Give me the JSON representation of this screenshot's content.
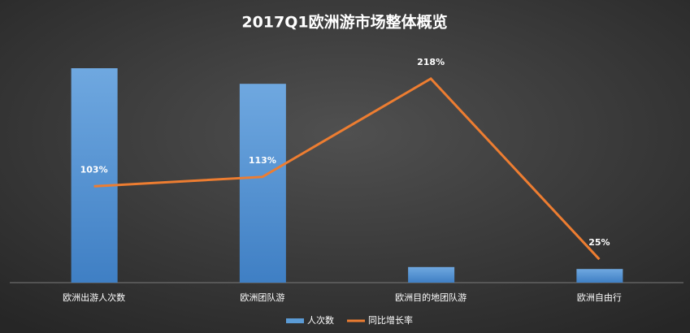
{
  "chart_data": {
    "type": "bar_line",
    "title": "2017Q1欧洲游市场整体概览",
    "categories": [
      "欧洲出游人次数",
      "欧洲团队游",
      "欧洲目的地团队游",
      "欧洲自由行"
    ],
    "series": [
      {
        "name": "人次数",
        "type": "bar",
        "color": "#5b9bd5",
        "values": [
          110,
          102,
          8,
          7
        ]
      },
      {
        "name": "同比增长率",
        "type": "line",
        "axis": "y2",
        "color": "#ed7d31",
        "values": [
          103,
          113,
          218,
          25
        ],
        "value_labels": [
          "103%",
          "113%",
          "218%",
          "25%"
        ]
      }
    ],
    "ylim": [
      0,
      120
    ],
    "y2lim": [
      0,
      250
    ],
    "legend": "bottom"
  }
}
